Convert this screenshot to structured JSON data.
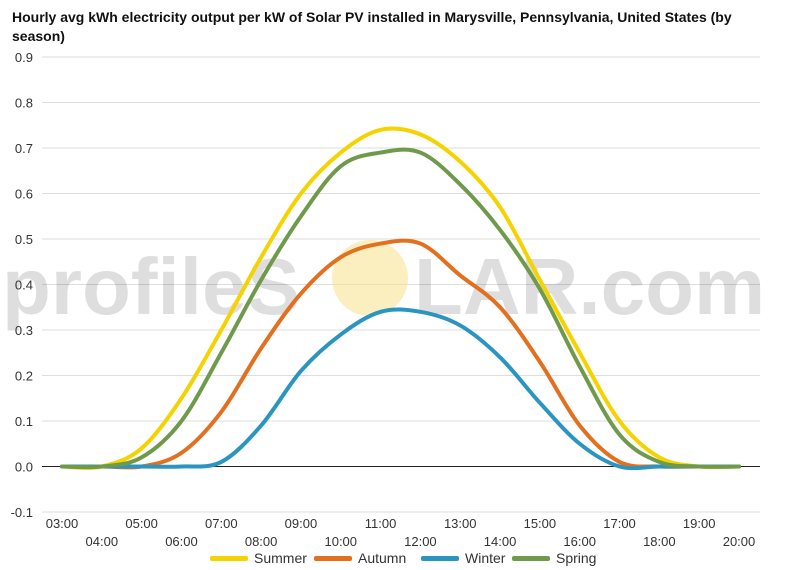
{
  "chart_data": {
    "type": "line",
    "title": "Hourly avg kWh electricity output per kW of Solar PV installed in Marysville, Pennsylvania, United States (by season)",
    "xlabel": "",
    "ylabel": "",
    "x": [
      "03:00",
      "04:00",
      "05:00",
      "06:00",
      "07:00",
      "08:00",
      "09:00",
      "10:00",
      "11:00",
      "12:00",
      "13:00",
      "14:00",
      "15:00",
      "16:00",
      "17:00",
      "18:00",
      "19:00",
      "20:00"
    ],
    "ylim": [
      -0.1,
      0.9
    ],
    "yticks": [
      -0.1,
      0.0,
      0.1,
      0.2,
      0.3,
      0.4,
      0.5,
      0.6,
      0.7,
      0.8,
      0.9
    ],
    "grid": true,
    "legend_position": "bottom",
    "series": [
      {
        "name": "Summer",
        "color": "#f5d300",
        "values": [
          0.0,
          0.0,
          0.04,
          0.15,
          0.3,
          0.46,
          0.6,
          0.69,
          0.74,
          0.73,
          0.67,
          0.57,
          0.41,
          0.25,
          0.1,
          0.02,
          0.0,
          0.0
        ]
      },
      {
        "name": "Autumn",
        "color": "#e2701f",
        "values": [
          0.0,
          0.0,
          0.0,
          0.03,
          0.12,
          0.26,
          0.38,
          0.46,
          0.49,
          0.49,
          0.42,
          0.35,
          0.23,
          0.09,
          0.01,
          0.0,
          0.0,
          0.0
        ]
      },
      {
        "name": "Winter",
        "color": "#2a95c1",
        "values": [
          0.0,
          0.0,
          0.0,
          0.0,
          0.01,
          0.09,
          0.21,
          0.29,
          0.34,
          0.34,
          0.31,
          0.24,
          0.14,
          0.05,
          0.0,
          0.0,
          0.0,
          0.0
        ]
      },
      {
        "name": "Spring",
        "color": "#6f9a4b",
        "values": [
          0.0,
          0.0,
          0.02,
          0.1,
          0.25,
          0.41,
          0.55,
          0.66,
          0.69,
          0.69,
          0.62,
          0.52,
          0.39,
          0.22,
          0.07,
          0.01,
          0.0,
          0.0
        ]
      }
    ]
  },
  "watermark": {
    "text_left": "profileS",
    "text_right": "LAR.com"
  }
}
